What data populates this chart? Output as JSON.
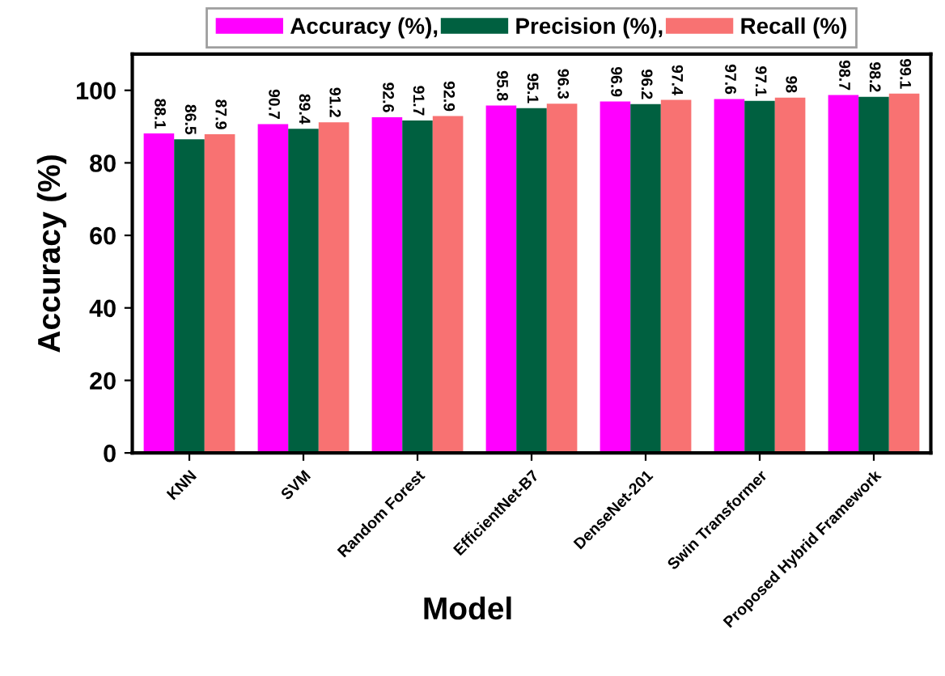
{
  "chart_data": {
    "type": "bar",
    "xlabel": "Model",
    "ylabel": "Accuracy (%)",
    "categories": [
      "KNN",
      "SVM",
      "Random Forest",
      "EfficientNet-B7",
      "DenseNet-201",
      "Swin Transformer",
      "Proposed Hybrid Framework"
    ],
    "series": [
      {
        "name": "Accuracy (%),",
        "color": "#ff00ff",
        "values": [
          88.1,
          90.7,
          92.6,
          95.8,
          96.9,
          97.6,
          98.7
        ]
      },
      {
        "name": "Precision (%),",
        "color": "#006040",
        "values": [
          86.5,
          89.4,
          91.7,
          95.1,
          96.2,
          97.1,
          98.2
        ]
      },
      {
        "name": "Recall (%)",
        "color": "#f87272",
        "values": [
          87.9,
          91.2,
          92.9,
          96.3,
          97.4,
          98,
          99.1
        ]
      }
    ],
    "ylim": [
      0,
      110
    ],
    "yticks": [
      0,
      20,
      40,
      60,
      80,
      100
    ],
    "data_labels": true,
    "legend": "top",
    "grid": false
  }
}
